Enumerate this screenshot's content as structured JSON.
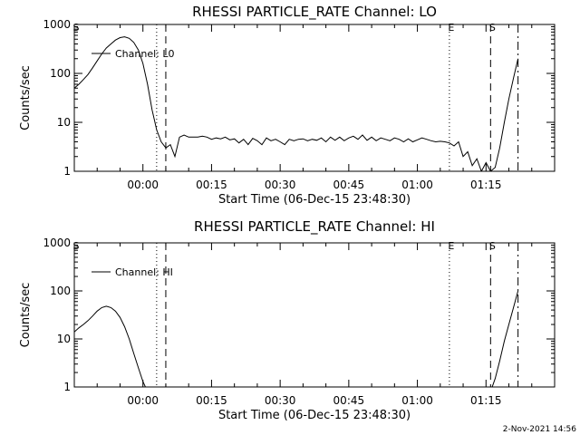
{
  "page": {
    "timestamp": "2-Nov-2021 14:56"
  },
  "chart_data": [
    {
      "type": "line",
      "title": "RHESSI PARTICLE_RATE Channel: LO",
      "xlabel": "Start Time (06-Dec-15 23:48:30)",
      "ylabel": "Counts/sec",
      "yscale": "log",
      "ylim": [
        1,
        1000
      ],
      "xlim_minutes": [
        -15,
        90
      ],
      "xtick_values": [
        0,
        15,
        30,
        45,
        60,
        75
      ],
      "xtick_labels": [
        "00:00",
        "00:15",
        "00:30",
        "00:45",
        "01:00",
        "01:15"
      ],
      "ytick_values": [
        1,
        10,
        100,
        1000
      ],
      "ytick_labels": [
        "1",
        "10",
        "100",
        "1000"
      ],
      "legend": {
        "entries": [
          "Channel: L0"
        ],
        "placement": "top-left"
      },
      "markers": [
        {
          "label": "S",
          "x": -15,
          "style": "none"
        },
        {
          "label": "",
          "x": 3,
          "style": "dotted"
        },
        {
          "label": "",
          "x": 5,
          "style": "dashed"
        },
        {
          "label": "E",
          "x": 67,
          "style": "dotted"
        },
        {
          "label": "S",
          "x": 76,
          "style": "dashed"
        },
        {
          "label": "",
          "x": 82,
          "style": "dashdot"
        }
      ],
      "series": [
        {
          "name": "Channel: L0",
          "x": [
            -15,
            -14,
            -13,
            -12,
            -11,
            -10,
            -9,
            -8,
            -7,
            -6,
            -5,
            -4,
            -3,
            -2,
            -1,
            0,
            1,
            2,
            3,
            4,
            5,
            6,
            7,
            8,
            9,
            10,
            11,
            12,
            13,
            14,
            15,
            16,
            17,
            18,
            19,
            20,
            21,
            22,
            23,
            24,
            25,
            26,
            27,
            28,
            29,
            30,
            31,
            32,
            33,
            34,
            35,
            36,
            37,
            38,
            39,
            40,
            41,
            42,
            43,
            44,
            45,
            46,
            47,
            48,
            49,
            50,
            51,
            52,
            53,
            54,
            55,
            56,
            57,
            58,
            59,
            60,
            61,
            62,
            63,
            64,
            65,
            66,
            67,
            68,
            69,
            70,
            71,
            72,
            73,
            74,
            75,
            76,
            77,
            78,
            79,
            80,
            81,
            82
          ],
          "values": [
            50,
            60,
            75,
            95,
            130,
            180,
            250,
            330,
            400,
            480,
            540,
            560,
            520,
            430,
            300,
            160,
            60,
            18,
            7,
            4,
            3,
            3.5,
            2,
            5,
            5.5,
            5,
            5,
            5,
            5.2,
            5,
            4.5,
            4.8,
            4.6,
            5,
            4.4,
            4.6,
            3.8,
            4.5,
            3.5,
            4.7,
            4.2,
            3.5,
            4.8,
            4.2,
            4.5,
            4,
            3.5,
            4.5,
            4.2,
            4.5,
            4.6,
            4.2,
            4.5,
            4.3,
            4.8,
            4,
            5,
            4.3,
            5,
            4.2,
            4.8,
            5.2,
            4.5,
            5.5,
            4.3,
            5,
            4.2,
            4.8,
            4.5,
            4.2,
            4.8,
            4.5,
            4,
            4.6,
            4,
            4.4,
            4.8,
            4.5,
            4.2,
            4,
            4.1,
            4,
            3.8,
            3.3,
            4,
            2,
            2.5,
            1.3,
            1.8,
            1,
            1.5,
            1,
            1.2,
            3,
            10,
            30,
            80,
            200
          ]
        }
      ]
    },
    {
      "type": "line",
      "title": "RHESSI PARTICLE_RATE Channel: HI",
      "xlabel": "Start Time (06-Dec-15 23:48:30)",
      "ylabel": "Counts/sec",
      "yscale": "log",
      "ylim": [
        1,
        1000
      ],
      "xlim_minutes": [
        -15,
        90
      ],
      "xtick_values": [
        0,
        15,
        30,
        45,
        60,
        75
      ],
      "xtick_labels": [
        "00:00",
        "00:15",
        "00:30",
        "00:45",
        "01:00",
        "01:15"
      ],
      "ytick_values": [
        1,
        10,
        100,
        1000
      ],
      "ytick_labels": [
        "1",
        "10",
        "100",
        "1000"
      ],
      "legend": {
        "entries": [
          "Channel: HI"
        ],
        "placement": "top-left"
      },
      "markers": [
        {
          "label": "S",
          "x": -15,
          "style": "none"
        },
        {
          "label": "",
          "x": 3,
          "style": "dotted"
        },
        {
          "label": "",
          "x": 5,
          "style": "dashed"
        },
        {
          "label": "E",
          "x": 67,
          "style": "dotted"
        },
        {
          "label": "S",
          "x": 76,
          "style": "dashed"
        },
        {
          "label": "",
          "x": 82,
          "style": "dashdot"
        }
      ],
      "series": [
        {
          "name": "Channel: HI",
          "x": [
            -15,
            -14,
            -13,
            -12,
            -11,
            -10,
            -9,
            -8,
            -7,
            -6,
            -5,
            -4,
            -3,
            -2,
            -1,
            0,
            1,
            2,
            3,
            4,
            5,
            6,
            7,
            8,
            9,
            10,
            11,
            12,
            13,
            14,
            15,
            16,
            17,
            18,
            19,
            20,
            21,
            22,
            23,
            24,
            25,
            26,
            27,
            28,
            29,
            30,
            31,
            32,
            33,
            34,
            35,
            36,
            37,
            38,
            39,
            40,
            41,
            42,
            43,
            44,
            45,
            46,
            47,
            48,
            49,
            50,
            51,
            52,
            53,
            54,
            55,
            56,
            57,
            58,
            59,
            60,
            61,
            62,
            63,
            64,
            65,
            66,
            67,
            68,
            69,
            70,
            71,
            72,
            73,
            74,
            75,
            76,
            77,
            78,
            79,
            80,
            81,
            82
          ],
          "values": [
            14,
            17,
            20,
            24,
            30,
            38,
            45,
            48,
            45,
            38,
            28,
            18,
            10,
            5,
            2.5,
            1.3,
            0.8,
            null,
            null,
            null,
            null,
            null,
            null,
            null,
            null,
            null,
            null,
            null,
            null,
            null,
            null,
            null,
            null,
            null,
            null,
            null,
            null,
            null,
            null,
            null,
            null,
            null,
            null,
            null,
            null,
            null,
            null,
            null,
            null,
            null,
            null,
            null,
            null,
            null,
            null,
            null,
            null,
            null,
            null,
            null,
            null,
            null,
            null,
            null,
            null,
            null,
            null,
            null,
            null,
            null,
            null,
            null,
            null,
            null,
            null,
            null,
            null,
            null,
            null,
            null,
            null,
            null,
            null,
            null,
            null,
            null,
            null,
            null,
            null,
            null,
            null,
            0.8,
            1.5,
            3.5,
            9,
            20,
            45,
            100
          ]
        }
      ]
    }
  ]
}
